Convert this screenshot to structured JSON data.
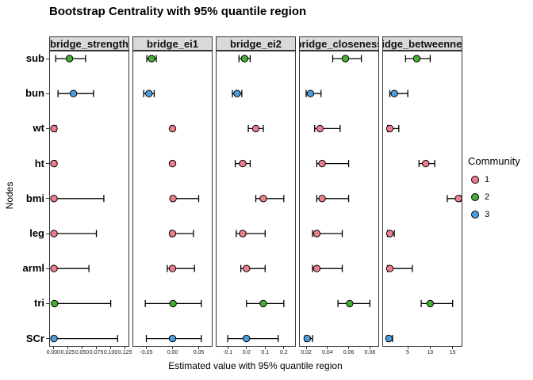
{
  "title": "Bootstrap Centrality with 95% quantile region",
  "axes": {
    "x_label": "Estimated value with 95% quantile region",
    "y_label": "Nodes"
  },
  "legend": {
    "title": "Community",
    "items": [
      {
        "label": "1",
        "color": "#EE7E8E"
      },
      {
        "label": "2",
        "color": "#46AE33"
      },
      {
        "label": "3",
        "color": "#4A9EE0"
      }
    ]
  },
  "chart_data": {
    "type": "scatter",
    "subtype": "pointrange-facets",
    "title": "Bootstrap Centrality with 95% quantile region",
    "xlabel": "Estimated value with 95% quantile region",
    "ylabel": "Nodes",
    "legend_position": "right",
    "grid": false,
    "nodes": [
      "sub",
      "bun",
      "wt",
      "ht",
      "bmi",
      "leg",
      "arml",
      "tri",
      "SCr"
    ],
    "node_community": {
      "sub": "2",
      "bun": "3",
      "wt": "1",
      "ht": "1",
      "bmi": "1",
      "leg": "1",
      "arml": "1",
      "tri": "2",
      "SCr": "3"
    },
    "facets": [
      {
        "label": "bridge_strength",
        "xlim": [
          -0.006,
          0.131
        ],
        "ticks": [
          {
            "label": "0.000",
            "value": 0.0
          },
          {
            "label": "0.025",
            "value": 0.025
          },
          {
            "label": "0.050",
            "value": 0.05
          },
          {
            "label": "0.075",
            "value": 0.075
          },
          {
            "label": "0.100",
            "value": 0.1
          },
          {
            "label": "0.125",
            "value": 0.125
          }
        ],
        "points": [
          {
            "node": "sub",
            "value": 0.028,
            "lo": 0.004,
            "hi": 0.056
          },
          {
            "node": "bun",
            "value": 0.035,
            "lo": 0.008,
            "hi": 0.07
          },
          {
            "node": "wt",
            "value": 0.001,
            "lo": 0.0,
            "hi": 0.005
          },
          {
            "node": "ht",
            "value": 0.001,
            "lo": 0.0,
            "hi": 0.004
          },
          {
            "node": "bmi",
            "value": 0.001,
            "lo": 0.0,
            "hi": 0.088
          },
          {
            "node": "leg",
            "value": 0.001,
            "lo": 0.0,
            "hi": 0.075
          },
          {
            "node": "arml",
            "value": 0.001,
            "lo": 0.0,
            "hi": 0.062
          },
          {
            "node": "tri",
            "value": 0.002,
            "lo": 0.0,
            "hi": 0.1
          },
          {
            "node": "SCr",
            "value": 0.001,
            "lo": 0.0,
            "hi": 0.112
          }
        ]
      },
      {
        "label": "bridge_ei1",
        "xlim": [
          -0.075,
          0.075
        ],
        "ticks": [
          {
            "label": "-0.05",
            "value": -0.05
          },
          {
            "label": "0.00",
            "value": 0.0
          },
          {
            "label": "0.05",
            "value": 0.05
          }
        ],
        "points": [
          {
            "node": "sub",
            "value": -0.04,
            "lo": -0.049,
            "hi": -0.031
          },
          {
            "node": "bun",
            "value": -0.045,
            "lo": -0.055,
            "hi": -0.035
          },
          {
            "node": "wt",
            "value": 0.0,
            "lo": -0.002,
            "hi": 0.002
          },
          {
            "node": "ht",
            "value": 0.0,
            "lo": -0.002,
            "hi": 0.002
          },
          {
            "node": "bmi",
            "value": 0.001,
            "lo": -0.002,
            "hi": 0.05
          },
          {
            "node": "leg",
            "value": 0.0,
            "lo": -0.004,
            "hi": 0.04
          },
          {
            "node": "arml",
            "value": 0.0,
            "lo": -0.01,
            "hi": 0.042
          },
          {
            "node": "tri",
            "value": 0.001,
            "lo": -0.052,
            "hi": 0.055
          },
          {
            "node": "SCr",
            "value": 0.0,
            "lo": -0.05,
            "hi": 0.055
          }
        ]
      },
      {
        "label": "bridge_ei2",
        "xlim": [
          -0.16,
          0.26
        ],
        "ticks": [
          {
            "label": "-0.1",
            "value": -0.1
          },
          {
            "label": "0.0",
            "value": 0.0
          },
          {
            "label": "0.1",
            "value": 0.1
          },
          {
            "label": "0.2",
            "value": 0.2
          }
        ],
        "points": [
          {
            "node": "sub",
            "value": -0.01,
            "lo": -0.04,
            "hi": 0.02
          },
          {
            "node": "bun",
            "value": -0.05,
            "lo": -0.075,
            "hi": -0.025
          },
          {
            "node": "wt",
            "value": 0.05,
            "lo": 0.01,
            "hi": 0.09
          },
          {
            "node": "ht",
            "value": -0.02,
            "lo": -0.06,
            "hi": 0.02
          },
          {
            "node": "bmi",
            "value": 0.09,
            "lo": 0.05,
            "hi": 0.2
          },
          {
            "node": "leg",
            "value": -0.02,
            "lo": -0.055,
            "hi": 0.1
          },
          {
            "node": "arml",
            "value": 0.0,
            "lo": -0.03,
            "hi": 0.1
          },
          {
            "node": "tri",
            "value": 0.09,
            "lo": 0.0,
            "hi": 0.2
          },
          {
            "node": "SCr",
            "value": 0.0,
            "lo": -0.1,
            "hi": 0.17
          }
        ]
      },
      {
        "label": "bridge_closeness",
        "xlim": [
          0.014,
          0.088
        ],
        "ticks": [
          {
            "label": "0.02",
            "value": 0.02
          },
          {
            "label": "0.04",
            "value": 0.04
          },
          {
            "label": "0.06",
            "value": 0.06
          },
          {
            "label": "0.08",
            "value": 0.08
          }
        ],
        "points": [
          {
            "node": "sub",
            "value": 0.057,
            "lo": 0.045,
            "hi": 0.072
          },
          {
            "node": "bun",
            "value": 0.024,
            "lo": 0.02,
            "hi": 0.034
          },
          {
            "node": "wt",
            "value": 0.033,
            "lo": 0.028,
            "hi": 0.052
          },
          {
            "node": "ht",
            "value": 0.035,
            "lo": 0.03,
            "hi": 0.06
          },
          {
            "node": "bmi",
            "value": 0.035,
            "lo": 0.03,
            "hi": 0.06
          },
          {
            "node": "leg",
            "value": 0.03,
            "lo": 0.026,
            "hi": 0.054
          },
          {
            "node": "arml",
            "value": 0.03,
            "lo": 0.026,
            "hi": 0.054
          },
          {
            "node": "tri",
            "value": 0.061,
            "lo": 0.05,
            "hi": 0.08
          },
          {
            "node": "SCr",
            "value": 0.021,
            "lo": 0.019,
            "hi": 0.026
          }
        ]
      },
      {
        "label": "bridge_betweenness",
        "xlim": [
          -0.5,
          17.0
        ],
        "ticks": [
          {
            "label": "5",
            "value": 5
          },
          {
            "label": "10",
            "value": 10
          },
          {
            "label": "15",
            "value": 15
          }
        ],
        "points": [
          {
            "node": "sub",
            "value": 7.0,
            "lo": 4.5,
            "hi": 10.0
          },
          {
            "node": "bun",
            "value": 2.0,
            "lo": 1.0,
            "hi": 5.0
          },
          {
            "node": "wt",
            "value": 1.0,
            "lo": 0.5,
            "hi": 3.0
          },
          {
            "node": "ht",
            "value": 9.0,
            "lo": 7.5,
            "hi": 11.0
          },
          {
            "node": "bmi",
            "value": 16.3,
            "lo": 13.8,
            "hi": 16.8
          },
          {
            "node": "leg",
            "value": 1.0,
            "lo": 0.5,
            "hi": 2.0
          },
          {
            "node": "arml",
            "value": 1.0,
            "lo": 0.5,
            "hi": 6.0
          },
          {
            "node": "tri",
            "value": 10.0,
            "lo": 8.0,
            "hi": 15.0
          },
          {
            "node": "SCr",
            "value": 0.8,
            "lo": 0.4,
            "hi": 1.6
          }
        ]
      }
    ]
  }
}
